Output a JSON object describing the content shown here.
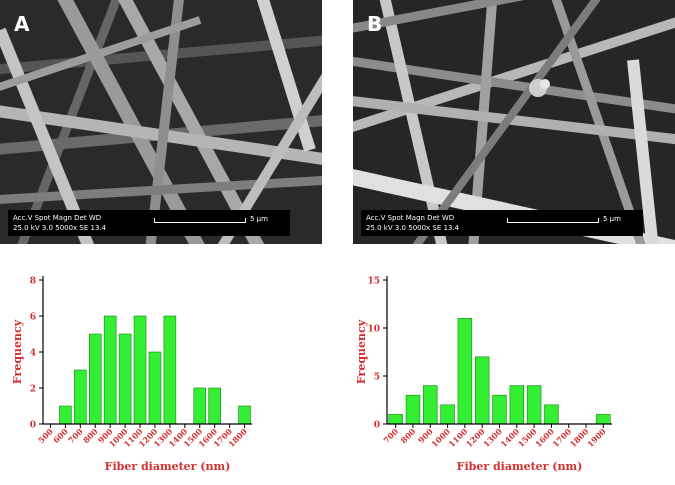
{
  "panels": [
    {
      "letter": "A",
      "sem_info": {
        "line1": "Acc.V   Spot Magn    Det  WD",
        "line2": "25.0 kV 3.0   5000x    SE   13.4",
        "scale_label": "5 μm"
      }
    },
    {
      "letter": "B",
      "sem_info": {
        "line1": "Acc.V   Spot Magn    Det  WD",
        "line2": "25.0 kV 3.0   5000x    SE   13.4",
        "scale_label": "5 μm"
      }
    }
  ],
  "colors": {
    "bar_fill": "#33ee33",
    "bar_stroke": "#118811",
    "label_red": "#d32f2f"
  },
  "chart_data": [
    {
      "type": "bar",
      "categories": [
        "500",
        "600",
        "700",
        "800",
        "900",
        "1000",
        "1100",
        "1200",
        "1300",
        "1400",
        "1500",
        "1600",
        "1700",
        "1800"
      ],
      "values": [
        0,
        1,
        3,
        5,
        6,
        5,
        6,
        4,
        6,
        0,
        2,
        2,
        0,
        1
      ],
      "xlabel": "Fiber diameter (nm)",
      "ylabel": "Frequency",
      "ylim": [
        0,
        8
      ],
      "yticks": [
        0,
        2,
        4,
        6,
        8
      ]
    },
    {
      "type": "bar",
      "categories": [
        "700",
        "800",
        "900",
        "1000",
        "1100",
        "1200",
        "1300",
        "1400",
        "1500",
        "1600",
        "1700",
        "1800",
        "1900"
      ],
      "values": [
        1,
        3,
        4,
        2,
        11,
        7,
        3,
        4,
        4,
        2,
        0,
        0,
        1
      ],
      "xlabel": "Fiber diameter (nm)",
      "ylabel": "Frequency",
      "ylim": [
        0,
        15
      ],
      "yticks": [
        0,
        5,
        10,
        15
      ]
    }
  ]
}
